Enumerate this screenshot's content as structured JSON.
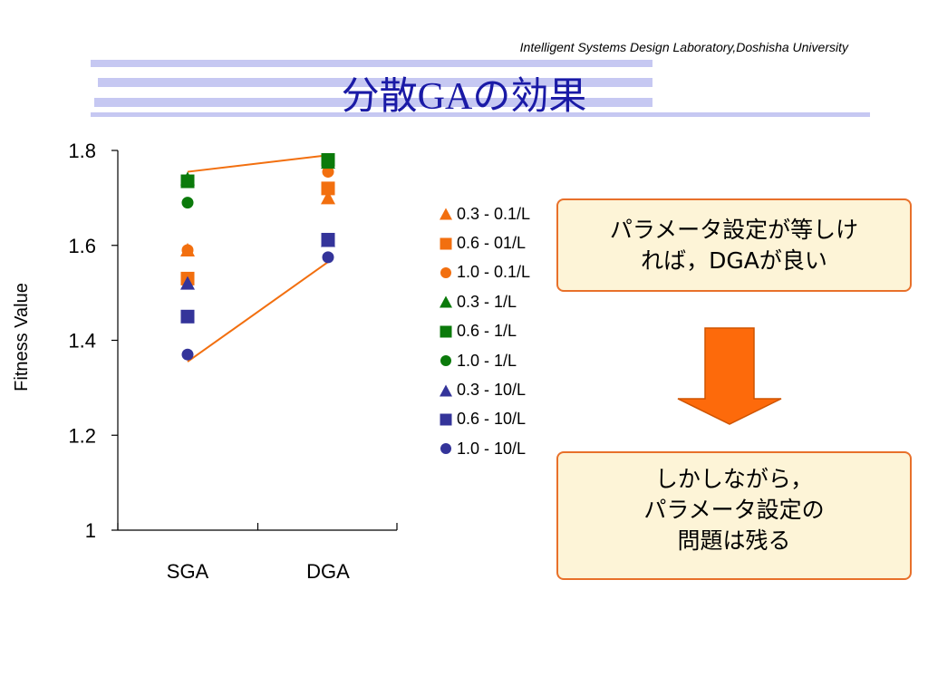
{
  "header": {
    "lab_name": "Intelligent Systems Design Laboratory,Doshisha University",
    "title": "分散GAの効果"
  },
  "colors": {
    "orange": "#f26f0f",
    "green": "#0b7a0b",
    "blue": "#34349a",
    "title": "#1a1aa6",
    "box_border": "#e8702a",
    "box_fill": "#fdf4d7"
  },
  "chart_data": {
    "type": "scatter",
    "categories": [
      "SGA",
      "DGA"
    ],
    "ylabel": "Fitness Value",
    "xlabel": "",
    "title": "",
    "ylim": [
      1,
      1.8
    ],
    "yticks": [
      "1",
      "1.2",
      "1.4",
      "1.6",
      "1.8"
    ],
    "legend_position": "right",
    "series": [
      {
        "name": "0.3 - 0.1/L",
        "marker": "triangle",
        "color": "#f26f0f",
        "values": [
          1.59,
          1.7
        ]
      },
      {
        "name": "0.6 - 01/L",
        "marker": "square",
        "color": "#f26f0f",
        "values": [
          1.53,
          1.72
        ]
      },
      {
        "name": "1.0 - 0.1/L",
        "marker": "circle",
        "color": "#f26f0f",
        "values": [
          1.59,
          1.755
        ]
      },
      {
        "name": "0.3 - 1/L",
        "marker": "triangle",
        "color": "#0b7a0b",
        "values": [
          1.74,
          1.775
        ]
      },
      {
        "name": "0.6 - 1/L",
        "marker": "square",
        "color": "#0b7a0b",
        "values": [
          1.735,
          1.78
        ]
      },
      {
        "name": "1.0 - 1/L",
        "marker": "circle",
        "color": "#0b7a0b",
        "values": [
          1.69,
          1.78
        ]
      },
      {
        "name": "0.3 - 10/L",
        "marker": "triangle",
        "color": "#34349a",
        "values": [
          1.52,
          1.61
        ]
      },
      {
        "name": "0.6 - 10/L",
        "marker": "square",
        "color": "#34349a",
        "values": [
          1.45,
          1.612
        ]
      },
      {
        "name": "1.0 - 10/L",
        "marker": "circle",
        "color": "#34349a",
        "values": [
          1.37,
          1.575
        ]
      }
    ],
    "annotation_lines": [
      {
        "color": "#f26f0f",
        "from": [
          "SGA",
          1.755
        ],
        "to": [
          "DGA",
          1.79
        ]
      },
      {
        "color": "#f26f0f",
        "from": [
          "SGA",
          1.355
        ],
        "to": [
          "DGA",
          1.565
        ]
      }
    ]
  },
  "callouts": {
    "top": [
      "パラメータ設定が等しけ",
      "れば，DGAが良い"
    ],
    "bottom": [
      "しかしながら，",
      "パラメータ設定の",
      "問題は残る"
    ]
  },
  "arrow": {
    "direction": "down",
    "color": "#fd6a0b"
  }
}
